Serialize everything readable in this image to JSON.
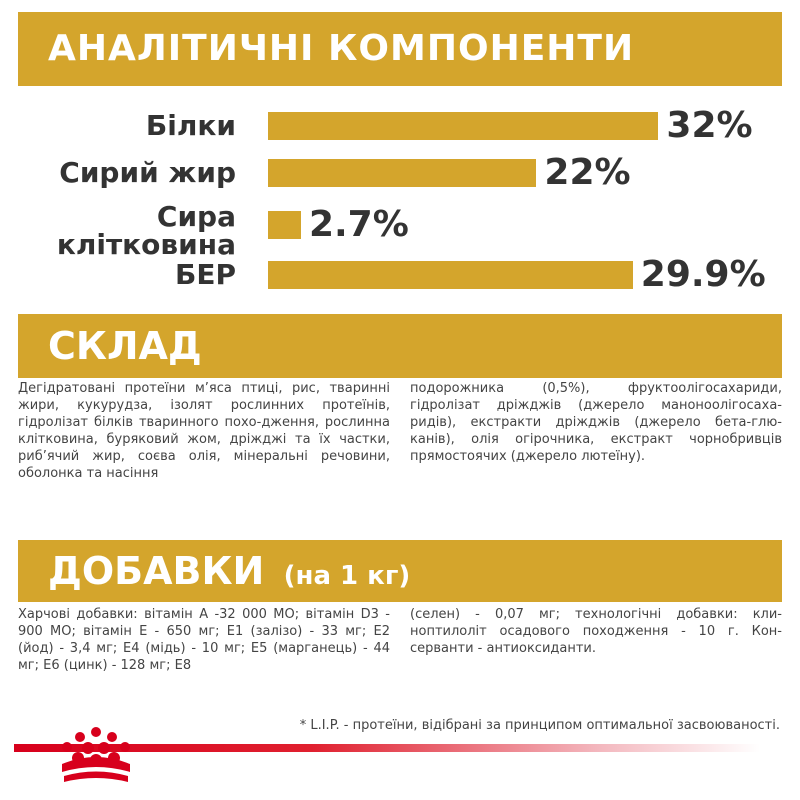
{
  "analytics": {
    "title": "АНАЛІТИЧНІ КОМПОНЕНТИ",
    "nutrients": [
      {
        "label": "Білки",
        "value_text": "32%",
        "percent": 32
      },
      {
        "label": "Сирий жир",
        "value_text": "22%",
        "percent": 22
      },
      {
        "label": "Сира клітковина",
        "value_text": "2.7%",
        "percent": 2.7
      },
      {
        "label": "БЕР",
        "value_text": "29.9%",
        "percent": 29.9
      }
    ]
  },
  "composition": {
    "title": "СКЛАД",
    "col1": "Дегідратовані протеїни м’яса птиці, рис, тваринні жири, кукурудза, ізолят рослинних протеїнів, гідролізат білків тваринного похо-дження, рослинна клітковина, буряковий жом, дріжджі та їх частки, риб’ячий жир, соєва олія, мінеральні речовини, оболонка та насіння",
    "col2": "подорожника (0,5%), фруктоолігосахариди, гідролізат дріжджів (джерело маноноолігосаха-ридів), екстракти дріжджів (джерело бета-глю-канів), олія огірочника, екстракт чорнобривців прямостоячих (джерело лютеїну)."
  },
  "additives": {
    "title": "ДОБАВКИ",
    "title_sub": "(на 1 кг)",
    "col1": "Харчові добавки: вітамін А -32 000 МО; вітамін D3 - 900 МО; вітамін Е - 650 мг; E1 (залізо) - 33 мг; E2 (йод) - 3,4 мг; E4 (мідь) - 10 мг; E5 (марганець) - 44 мг; E6 (цинк) - 128 мг; E8",
    "col2": "(селен) - 0,07 мг; технологічні добавки: кли-ноптилоліт осадового походження - 10 г. Кон-серванти - антиоксиданти."
  },
  "footnote": "* L.I.P. - протеїни, відібрані за принципом оптимальної засвоюваності.",
  "colors": {
    "gold": "#d4a52c",
    "text": "#333333",
    "brand_red": "#d7001c"
  },
  "icons": {
    "brand_logo": "crown-icon"
  }
}
